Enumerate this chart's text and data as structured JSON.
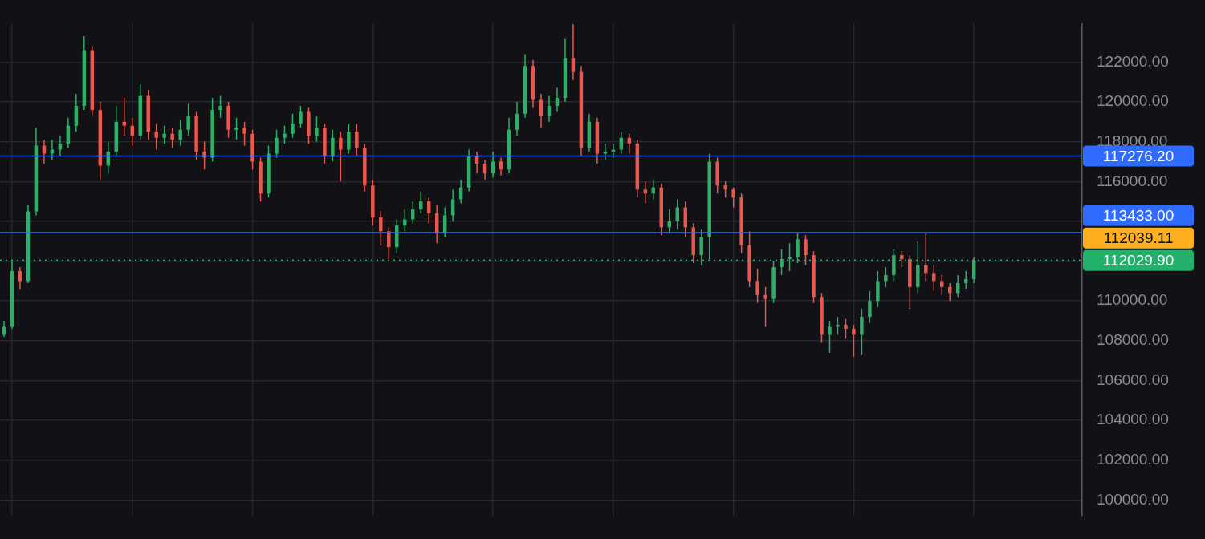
{
  "chart_data": {
    "type": "candlestick",
    "categories": [
      null,
      null,
      null,
      null,
      null,
      null,
      null,
      null,
      null,
      null,
      null,
      null,
      null,
      null,
      null,
      null,
      null,
      null,
      null,
      null,
      null,
      null,
      null,
      null,
      null,
      null,
      null,
      null,
      null,
      null,
      null,
      null,
      null,
      null,
      null,
      null,
      null,
      null,
      null,
      null,
      null,
      null,
      null,
      null,
      null,
      null,
      null,
      null,
      null,
      null,
      null,
      null,
      null,
      null,
      null,
      null,
      null,
      null,
      null,
      null,
      null,
      null,
      null,
      null,
      null,
      null,
      null,
      null,
      null,
      null,
      null,
      null,
      null,
      null,
      null,
      null,
      null,
      null,
      null,
      null,
      null,
      null,
      null,
      null,
      null,
      null,
      null,
      null,
      null,
      null,
      null,
      null,
      null,
      null,
      null,
      null,
      null,
      null,
      null,
      null,
      null,
      null,
      null,
      null,
      null,
      null,
      null,
      null,
      null,
      null,
      null,
      null,
      null,
      null,
      null,
      null,
      null,
      null,
      null,
      null,
      null,
      null,
      null,
      null,
      null,
      null,
      null,
      null,
      null,
      null,
      null,
      null,
      null,
      null,
      null
    ],
    "ohlc": [
      [
        108300,
        109000,
        108200,
        108700
      ],
      [
        108700,
        112000,
        108600,
        111500
      ],
      [
        111500,
        111700,
        110600,
        111000
      ],
      [
        111000,
        114800,
        110900,
        114500
      ],
      [
        114500,
        118700,
        114300,
        117800
      ],
      [
        117800,
        118100,
        116900,
        117400
      ],
      [
        117400,
        118100,
        117100,
        117600
      ],
      [
        117600,
        118300,
        117300,
        117900
      ],
      [
        117900,
        119200,
        117700,
        118800
      ],
      [
        118800,
        120400,
        118500,
        119800
      ],
      [
        119800,
        123300,
        119600,
        122600
      ],
      [
        122600,
        122800,
        119300,
        119600
      ],
      [
        119600,
        120000,
        116100,
        116800
      ],
      [
        116800,
        118000,
        116400,
        117500
      ],
      [
        117500,
        119800,
        117300,
        119000
      ],
      [
        119000,
        120200,
        118300,
        118800
      ],
      [
        118800,
        119200,
        117800,
        118300
      ],
      [
        118300,
        120900,
        118100,
        120300
      ],
      [
        120300,
        120600,
        118100,
        118500
      ],
      [
        118500,
        118900,
        117600,
        118200
      ],
      [
        118200,
        118800,
        117900,
        118400
      ],
      [
        118400,
        118700,
        117700,
        118100
      ],
      [
        118100,
        119100,
        117800,
        118600
      ],
      [
        118600,
        119900,
        118300,
        119300
      ],
      [
        119300,
        119500,
        117100,
        117500
      ],
      [
        117500,
        118000,
        116600,
        117200
      ],
      [
        117200,
        120200,
        117000,
        119600
      ],
      [
        119600,
        120300,
        119200,
        119800
      ],
      [
        119800,
        120000,
        118200,
        118600
      ],
      [
        118600,
        119200,
        118100,
        118700
      ],
      [
        118700,
        119000,
        117800,
        118400
      ],
      [
        118400,
        118600,
        116600,
        117000
      ],
      [
        117000,
        117200,
        115000,
        115400
      ],
      [
        115400,
        117800,
        115200,
        117400
      ],
      [
        117400,
        118600,
        117200,
        118200
      ],
      [
        118200,
        118800,
        117900,
        118400
      ],
      [
        118400,
        119400,
        118200,
        118900
      ],
      [
        118900,
        119800,
        118700,
        119500
      ],
      [
        119500,
        119700,
        117900,
        118300
      ],
      [
        118300,
        119300,
        118000,
        118700
      ],
      [
        118700,
        118900,
        116900,
        117300
      ],
      [
        117300,
        118600,
        117000,
        118200
      ],
      [
        118200,
        118500,
        116000,
        117600
      ],
      [
        117600,
        118900,
        117400,
        118500
      ],
      [
        118500,
        118900,
        117300,
        117700
      ],
      [
        117700,
        117900,
        115500,
        115800
      ],
      [
        115800,
        116100,
        113800,
        114200
      ],
      [
        114200,
        114500,
        112800,
        113500
      ],
      [
        113500,
        113700,
        112100,
        112700
      ],
      [
        112700,
        114100,
        112400,
        113800
      ],
      [
        113800,
        114600,
        113500,
        114100
      ],
      [
        114100,
        115000,
        113900,
        114600
      ],
      [
        114600,
        115500,
        114400,
        115000
      ],
      [
        115000,
        115200,
        113900,
        114400
      ],
      [
        114400,
        114800,
        112900,
        113400
      ],
      [
        113400,
        114700,
        113200,
        114300
      ],
      [
        114300,
        115600,
        114000,
        115100
      ],
      [
        115100,
        116100,
        114900,
        115700
      ],
      [
        115700,
        117600,
        115500,
        117300
      ],
      [
        117300,
        117500,
        116400,
        116900
      ],
      [
        116900,
        117100,
        116100,
        116400
      ],
      [
        116400,
        117500,
        116200,
        117000
      ],
      [
        117000,
        117200,
        116300,
        116600
      ],
      [
        116600,
        119200,
        116400,
        118600
      ],
      [
        118600,
        120000,
        118300,
        119400
      ],
      [
        119400,
        122400,
        119200,
        121800
      ],
      [
        121800,
        122100,
        119700,
        120100
      ],
      [
        120100,
        120400,
        118700,
        119300
      ],
      [
        119300,
        120300,
        119000,
        119800
      ],
      [
        119800,
        120700,
        119500,
        120200
      ],
      [
        120200,
        123200,
        120000,
        122200
      ],
      [
        122200,
        123900,
        121100,
        121500
      ],
      [
        121500,
        121800,
        117300,
        117700
      ],
      [
        117700,
        119400,
        117500,
        119000
      ],
      [
        119000,
        119200,
        116900,
        117400
      ],
      [
        117400,
        117900,
        117100,
        117500
      ],
      [
        117500,
        117900,
        117200,
        117600
      ],
      [
        117600,
        118500,
        117400,
        118200
      ],
      [
        118200,
        118400,
        117400,
        117900
      ],
      [
        117900,
        118100,
        115200,
        115600
      ],
      [
        115600,
        116000,
        114900,
        115400
      ],
      [
        115400,
        116100,
        115100,
        115700
      ],
      [
        115700,
        115900,
        113300,
        113700
      ],
      [
        113700,
        114600,
        113400,
        114000
      ],
      [
        114000,
        115100,
        113600,
        114700
      ],
      [
        114700,
        115000,
        113200,
        113700
      ],
      [
        113700,
        113900,
        111900,
        112300
      ],
      [
        112300,
        113600,
        111800,
        113200
      ],
      [
        113200,
        117400,
        112100,
        117000
      ],
      [
        117000,
        117200,
        115400,
        115800
      ],
      [
        115800,
        116000,
        115200,
        115600
      ],
      [
        115600,
        115700,
        114700,
        115200
      ],
      [
        115200,
        115400,
        112400,
        112800
      ],
      [
        112800,
        113500,
        110700,
        111000
      ],
      [
        111000,
        111600,
        109900,
        110300
      ],
      [
        110300,
        110700,
        108700,
        110100
      ],
      [
        110100,
        112000,
        109900,
        111700
      ],
      [
        111700,
        112600,
        111300,
        112100
      ],
      [
        112100,
        112900,
        111500,
        112200
      ],
      [
        112200,
        113400,
        111900,
        113100
      ],
      [
        113100,
        113300,
        111800,
        112300
      ],
      [
        112300,
        112500,
        109900,
        110200
      ],
      [
        110200,
        110400,
        107900,
        108300
      ],
      [
        108300,
        109000,
        107400,
        108700
      ],
      [
        108700,
        109200,
        108300,
        108800
      ],
      [
        108800,
        109100,
        108100,
        108600
      ],
      [
        108600,
        108800,
        107200,
        108300
      ],
      [
        108300,
        109600,
        107300,
        109200
      ],
      [
        109200,
        110500,
        108900,
        110000
      ],
      [
        110000,
        111500,
        109700,
        111000
      ],
      [
        111000,
        111700,
        110700,
        111300
      ],
      [
        111300,
        112600,
        111000,
        112300
      ],
      [
        112300,
        112500,
        111700,
        112100
      ],
      [
        112100,
        112300,
        109600,
        110700
      ],
      [
        110700,
        113000,
        110400,
        111800
      ],
      [
        111800,
        113400,
        111000,
        111400
      ],
      [
        111400,
        111800,
        110500,
        111000
      ],
      [
        111000,
        111300,
        110300,
        110700
      ],
      [
        110700,
        110900,
        110000,
        110400
      ],
      [
        110400,
        111300,
        110200,
        110900
      ],
      [
        110900,
        111500,
        110600,
        111100
      ],
      [
        111100,
        112200,
        110900,
        112030
      ],
      null,
      null,
      null,
      null,
      null,
      null,
      null,
      null,
      null,
      null,
      null,
      null,
      null
    ],
    "ylim": [
      99230,
      123930
    ],
    "yticks": [
      {
        "value": 100000,
        "label": "100000.00"
      },
      {
        "value": 102000,
        "label": "102000.00"
      },
      {
        "value": 104000,
        "label": "104000.00"
      },
      {
        "value": 106000,
        "label": "106000.00"
      },
      {
        "value": 108000,
        "label": "108000.00"
      },
      {
        "value": 110000,
        "label": "110000.00"
      },
      {
        "value": 112000,
        "label": null
      },
      {
        "value": 114000,
        "label": null
      },
      {
        "value": 116000,
        "label": "116000.00"
      },
      {
        "value": 118000,
        "label": "118000.00"
      },
      {
        "value": 120000,
        "label": "120000.00"
      },
      {
        "value": 122000,
        "label": "122000.00"
      }
    ],
    "ref_lines": [
      {
        "axis": "y",
        "value": 117276.2,
        "label": "117276.20",
        "color": "#2f6bff",
        "line_style": "solid"
      },
      {
        "axis": "y",
        "value": 113433,
        "label": "113433.00",
        "color": "#2f6bff",
        "line_style": "solid"
      },
      {
        "axis": "y",
        "value": 112039.11,
        "label": "112039.11",
        "color": "#ffb020",
        "line_style": "dotted"
      },
      {
        "axis": "y",
        "value": 112029.9,
        "label": "112029.90",
        "color": "#22b06a",
        "line_style": "dotted"
      }
    ],
    "grid": true,
    "tick_labels": "y",
    "legend": false
  }
}
